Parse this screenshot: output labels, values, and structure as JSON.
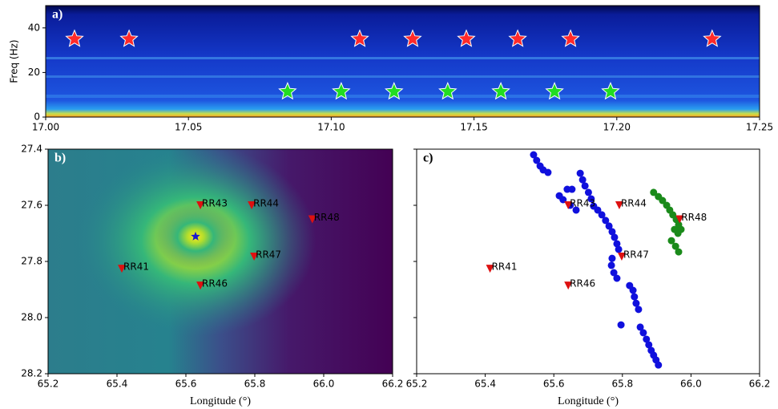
{
  "chart_data": [
    {
      "type": "spectrogram",
      "panel_label": "a)",
      "ylabel": "Freq (Hz)",
      "xlim": [
        17.0,
        17.25
      ],
      "ylim": [
        0,
        50
      ],
      "xticks": [
        {
          "value": 17.0,
          "label": "17.00"
        },
        {
          "value": 17.05,
          "label": "17.05"
        },
        {
          "value": 17.1,
          "label": "17.10"
        },
        {
          "value": 17.15,
          "label": "17.15"
        },
        {
          "value": 17.2,
          "label": "17.20"
        },
        {
          "value": 17.25,
          "label": "17.25"
        }
      ],
      "yticks": [
        0,
        20,
        40
      ],
      "series": [
        {
          "color": "#ff2a2a",
          "x": [
            17.0101,
            17.0292,
            17.11,
            17.1285,
            17.1473,
            17.1653,
            17.1838,
            17.2334
          ],
          "values": [
            35,
            35,
            35,
            35,
            35,
            35,
            35,
            35
          ]
        },
        {
          "color": "#22dd22",
          "x": [
            17.0847,
            17.1035,
            17.122,
            17.1408,
            17.1594,
            17.1782,
            17.1978
          ],
          "values": [
            11.4,
            11.4,
            11.4,
            11.4,
            11.4,
            11.4,
            11.4
          ]
        }
      ]
    },
    {
      "type": "heatmap",
      "panel_label": "b)",
      "xlabel": "Longitude (°)",
      "xlim": [
        65.2,
        66.2
      ],
      "ylim": [
        28.2,
        27.4
      ],
      "xticks": [
        65.2,
        65.4,
        65.6,
        65.8,
        {
          "value": 66.0,
          "label": "66.0"
        },
        66.2
      ],
      "yticks": [
        27.4,
        27.6,
        27.8,
        {
          "value": 28.0,
          "label": "28.0"
        },
        28.2
      ],
      "stations": {
        "color": "#dd1111",
        "labels": [
          "RR43",
          "RR44",
          "RR48",
          "RR47",
          "RR41",
          "RR46"
        ],
        "x": [
          65.642,
          65.791,
          65.967,
          65.798,
          65.414,
          65.642
        ],
        "values": [
          27.6,
          27.6,
          27.65,
          27.783,
          27.826,
          27.886
        ]
      },
      "source": {
        "color": "#1a1acc",
        "x": 65.628,
        "y": 27.711
      }
    },
    {
      "type": "scatter",
      "panel_label": "c)",
      "xlabel": "Longitude (°)",
      "xlim": [
        65.2,
        66.2
      ],
      "ylim": [
        28.2,
        27.4
      ],
      "xticks": [
        65.2,
        65.4,
        65.6,
        65.8,
        {
          "value": 66.0,
          "label": "66.0"
        },
        66.2
      ],
      "yticks": [
        27.4,
        27.6,
        27.8,
        28.0,
        28.2
      ],
      "ytick_labels": false,
      "series": [
        {
          "color": "#1010dd",
          "x": [
            65.541,
            65.55,
            65.56,
            65.569,
            65.583,
            65.616,
            65.627,
            65.639,
            65.653,
            65.648,
            65.665,
            65.677,
            65.684,
            65.691,
            65.701,
            65.709,
            65.716,
            65.728,
            65.74,
            65.751,
            65.761,
            65.77,
            65.777,
            65.784,
            65.789,
            65.77,
            65.768,
            65.775,
            65.784,
            65.821,
            65.831,
            65.835,
            65.84,
            65.847,
            65.796,
            65.852,
            65.861,
            65.87,
            65.877,
            65.884,
            65.891,
            65.898,
            65.905
          ],
          "values": [
            27.42,
            27.44,
            27.46,
            27.474,
            27.483,
            27.566,
            27.58,
            27.543,
            27.543,
            27.6,
            27.617,
            27.486,
            27.509,
            27.531,
            27.554,
            27.577,
            27.603,
            27.617,
            27.634,
            27.654,
            27.674,
            27.694,
            27.714,
            27.737,
            27.757,
            27.789,
            27.814,
            27.84,
            27.86,
            27.886,
            27.903,
            27.926,
            27.949,
            27.971,
            28.026,
            28.034,
            28.054,
            28.077,
            28.097,
            28.117,
            28.134,
            28.151,
            28.169
          ]
        },
        {
          "color": "#1a8a1a",
          "x": [
            65.891,
            65.905,
            65.917,
            65.929,
            65.938,
            65.947,
            65.957,
            65.964,
            65.971,
            65.952,
            65.962,
            65.943,
            65.955,
            65.964
          ],
          "values": [
            27.554,
            27.569,
            27.583,
            27.6,
            27.617,
            27.634,
            27.651,
            27.669,
            27.686,
            27.686,
            27.7,
            27.726,
            27.746,
            27.766
          ]
        }
      ],
      "stations": {
        "color": "#dd1111",
        "labels": [
          "RR43",
          "RR44",
          "RR48",
          "RR47",
          "RR41",
          "RR46"
        ],
        "x": [
          65.642,
          65.791,
          65.967,
          65.798,
          65.414,
          65.642
        ],
        "values": [
          27.6,
          27.6,
          27.65,
          27.783,
          27.826,
          27.886
        ]
      }
    }
  ]
}
